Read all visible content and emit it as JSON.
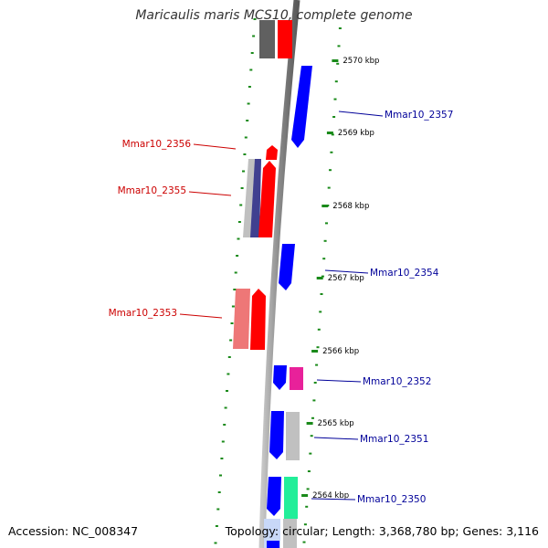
{
  "title": "Maricaulis maris MCS10, complete genome",
  "accession": "Accession: NC_008347",
  "summary": "Topology: circular; Length: 3,368,780 bp; Genes: 3,116",
  "colors": {
    "red": "#ff0000",
    "blue": "#0000ff",
    "grey": "#c0c0c0",
    "dark_grey": "#606060",
    "navy": "#404090",
    "salmon": "#ee7777",
    "magenta": "#e8219a",
    "green": "#22ee99",
    "tick_green": "#1a8a1a",
    "label_red": "#cc0000",
    "label_blue": "#000099"
  },
  "ruler": [
    {
      "label": "2570 kbp"
    },
    {
      "label": "2569 kbp"
    },
    {
      "label": "2568 kbp"
    },
    {
      "label": "2567 kbp"
    },
    {
      "label": "2566 kbp"
    },
    {
      "label": "2565 kbp"
    },
    {
      "label": "2564 kbp"
    }
  ],
  "gene_labels": [
    {
      "text": "Mmar10_2357",
      "strand": "reverse"
    },
    {
      "text": "Mmar10_2356",
      "strand": "forward"
    },
    {
      "text": "Mmar10_2355",
      "strand": "forward"
    },
    {
      "text": "Mmar10_2354",
      "strand": "reverse"
    },
    {
      "text": "Mmar10_2353",
      "strand": "forward"
    },
    {
      "text": "Mmar10_2352",
      "strand": "reverse"
    },
    {
      "text": "Mmar10_2351",
      "strand": "reverse"
    },
    {
      "text": "Mmar10_2350",
      "strand": "reverse"
    }
  ]
}
